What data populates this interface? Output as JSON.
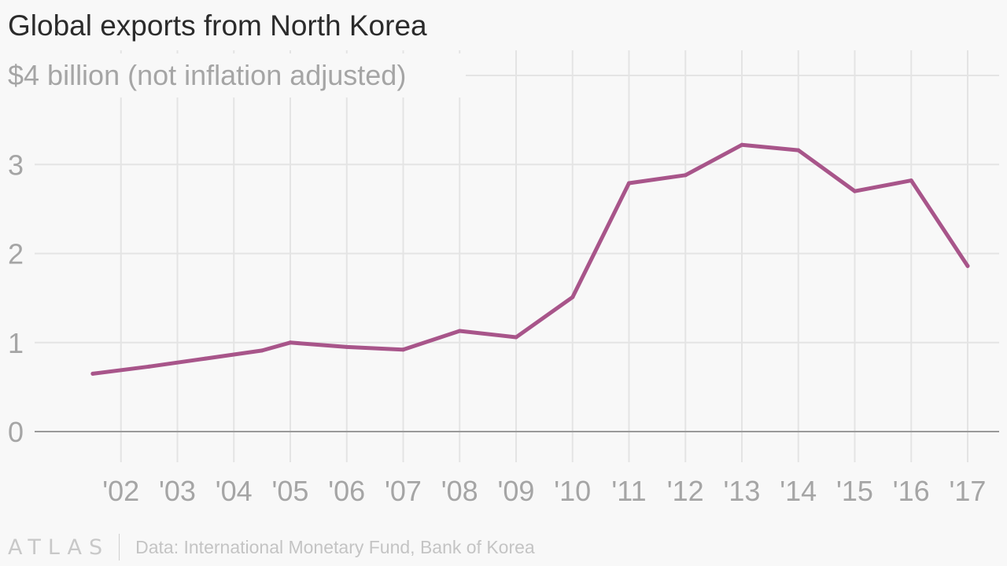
{
  "header": {
    "title": "Global exports from North Korea"
  },
  "footer": {
    "brand": "ATLAS",
    "source": "Data: International Monetary Fund, Bank of Korea"
  },
  "colors": {
    "line": "#a8558a",
    "grid": "#e4e4e4",
    "baseline": "#9a9a9a",
    "axis_text": "#a5a5a5",
    "title": "#2b2b2b",
    "background": "#f8f8f8"
  },
  "chart_data": {
    "type": "line",
    "title": "Global exports from North Korea",
    "unit_label": "$4 billion (not inflation adjusted)",
    "xlabel": "",
    "ylabel": "$ billion",
    "grid": true,
    "legend": "none",
    "xlim": [
      2001,
      2017
    ],
    "ylim": [
      0,
      4
    ],
    "x_tick_values": [
      2002,
      2003,
      2004,
      2005,
      2006,
      2007,
      2008,
      2009,
      2010,
      2011,
      2012,
      2013,
      2014,
      2015,
      2016,
      2017
    ],
    "x_tick_labels": [
      "'02",
      "'03",
      "'04",
      "'05",
      "'06",
      "'07",
      "'08",
      "'09",
      "'10",
      "'11",
      "'12",
      "'13",
      "'14",
      "'15",
      "'16",
      "'17"
    ],
    "y_tick_values": [
      0,
      1,
      2,
      3
    ],
    "y_tick_labels": [
      "0",
      "1",
      "2",
      "3"
    ],
    "series": [
      {
        "name": "Global exports",
        "x": [
          2001.5,
          2002.5,
          2003.5,
          2004.5,
          2005,
          2006,
          2007,
          2008,
          2009,
          2010,
          2011,
          2012,
          2013,
          2014,
          2015,
          2016,
          2017
        ],
        "values": [
          0.65,
          0.73,
          0.82,
          0.91,
          1.0,
          0.95,
          0.92,
          1.13,
          1.06,
          1.51,
          2.79,
          2.88,
          3.22,
          3.16,
          2.7,
          2.82,
          1.86
        ]
      }
    ]
  }
}
